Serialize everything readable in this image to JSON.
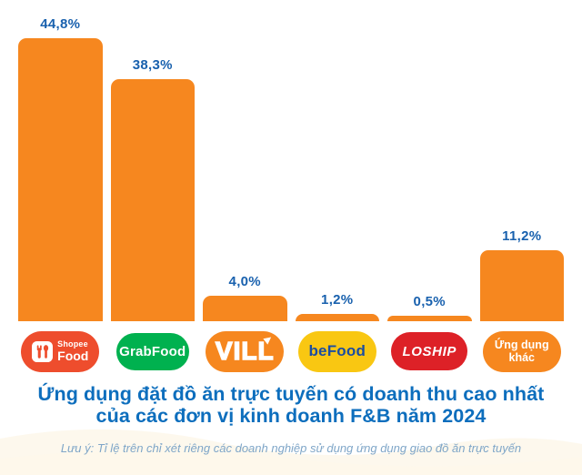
{
  "chart_data": {
    "type": "bar",
    "title": "Ứng dụng đặt đồ ăn trực tuyến có doanh thu cao nhất của các đơn vị kinh doanh F&B năm 2024",
    "categories": [
      "ShopeeFood",
      "GrabFood",
      "VILL",
      "beFood",
      "LOSHIP",
      "Ứng dụng khác"
    ],
    "values": [
      44.8,
      38.3,
      4.0,
      1.2,
      0.5,
      11.2
    ],
    "value_labels": [
      "44,8%",
      "38,3%",
      "4,0%",
      "1,2%",
      "0,5%",
      "11,2%"
    ],
    "unit": "%",
    "ylim": [
      0,
      50
    ],
    "grid": false,
    "legend": false,
    "bar_color": "#F6871F",
    "value_label_color": "#1961AE"
  },
  "title": {
    "line1": "Ứng dụng đặt đồ ăn trực tuyến có doanh thu cao nhất",
    "line2": "của các đơn vị kinh doanh F&B năm 2024",
    "color": "#0D6EBD"
  },
  "footnote": {
    "text": "Lưu ý: Tỉ lệ trên chỉ xét riêng các doanh nghiệp sử dụng ứng dụng giao đồ ăn trực tuyến",
    "color": "#7FA6C8"
  },
  "logos": {
    "shopeefood": {
      "line1": "Shopee",
      "line2": "Food",
      "bg": "#EE4D2D",
      "text_color": "#FFFFFF"
    },
    "grabfood": {
      "label": "GrabFood",
      "bg": "#00B14F",
      "text_color": "#FFFFFF"
    },
    "vill": {
      "label": "VILL",
      "bg": "#F6871F",
      "text_color": "#FFFFFF"
    },
    "befood": {
      "label": "beFood",
      "bg": "#F9C712",
      "text_color": "#1B4DA1"
    },
    "loship": {
      "label": "LOSHIP",
      "bg": "#DD2127",
      "text_color": "#FFFFFF"
    },
    "other": {
      "line1": "Ứng dụng",
      "line2": "khác",
      "bg": "#F6871F",
      "text_color": "#FFFFFF"
    }
  }
}
